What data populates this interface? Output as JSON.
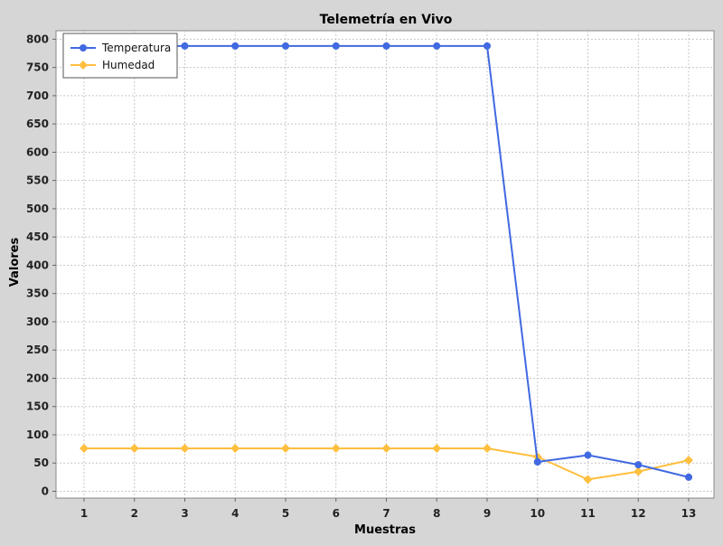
{
  "chart_data": {
    "type": "line",
    "title": "Telemetría en Vivo",
    "xlabel": "Muestras",
    "ylabel": "Valores",
    "categories": [
      "1",
      "2",
      "3",
      "4",
      "5",
      "6",
      "7",
      "8",
      "9",
      "10",
      "11",
      "12",
      "13"
    ],
    "ylim": [
      -12,
      815
    ],
    "yticks": [
      0,
      50,
      100,
      150,
      200,
      250,
      300,
      350,
      400,
      450,
      500,
      550,
      600,
      650,
      700,
      750,
      800
    ],
    "grid": true,
    "legend_position": "top-left",
    "series": [
      {
        "name": "Temperatura",
        "color": "#4169e1",
        "marker": "circle",
        "values": [
          788,
          788,
          788,
          788,
          788,
          788,
          788,
          788,
          788,
          52,
          64,
          47,
          25
        ]
      },
      {
        "name": "Humedad",
        "color": "#ffbf3f",
        "marker": "diamond",
        "values": [
          76,
          76,
          76,
          76,
          76,
          76,
          76,
          76,
          76,
          61,
          21,
          35,
          55
        ]
      }
    ]
  }
}
